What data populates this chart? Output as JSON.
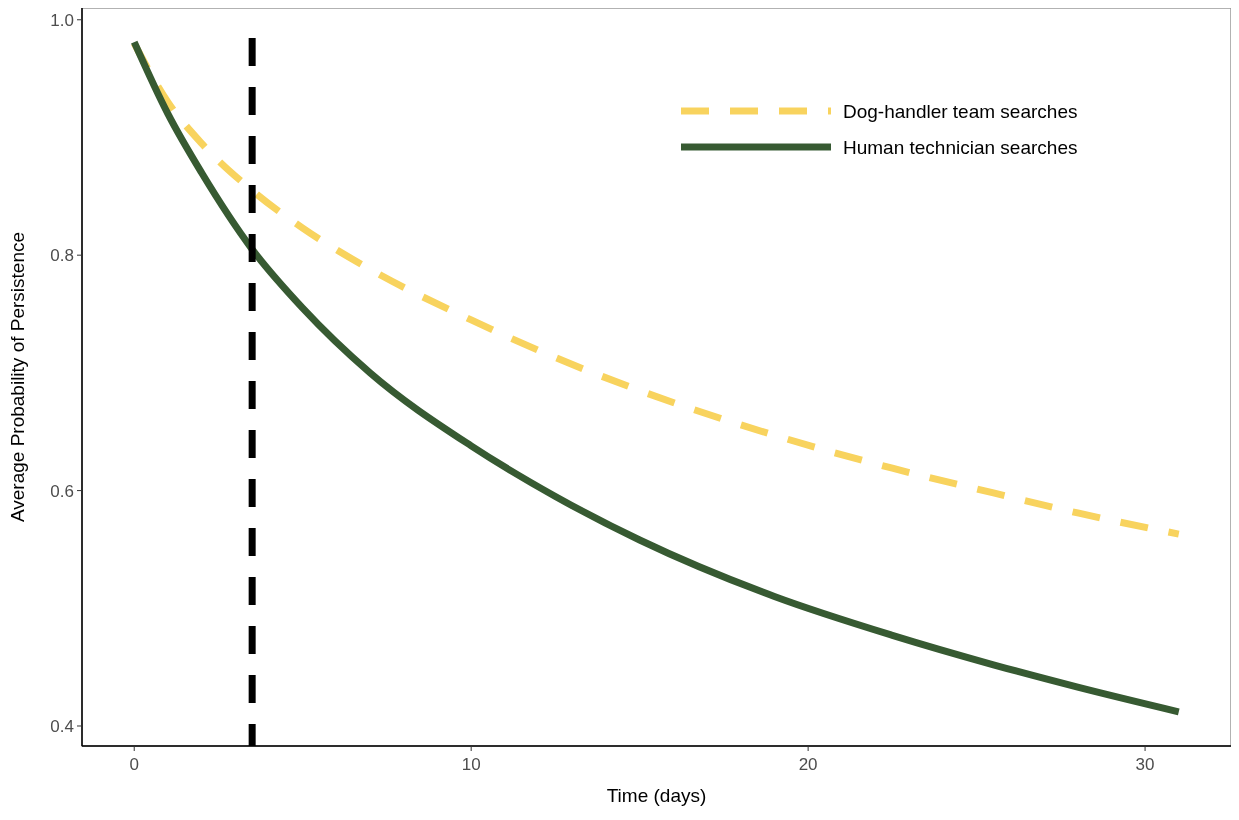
{
  "chart_data": {
    "type": "line",
    "xlabel": "Time (days)",
    "ylabel": "Average Probability of Persistence",
    "x": [
      0,
      1,
      2,
      3.5,
      5,
      7,
      10,
      12.5,
      15,
      19,
      22.5,
      25.5,
      28,
      31
    ],
    "series": [
      {
        "name": "Dog-handler team searches",
        "color": "#f8d35e",
        "line_style": "dashed",
        "values": [
          0.98,
          0.93,
          0.895,
          0.855,
          0.823,
          0.788,
          0.745,
          0.713,
          0.685,
          0.647,
          0.619,
          0.598,
          0.581,
          0.563
        ]
      },
      {
        "name": "Human technician searches",
        "color": "#375a32",
        "line_style": "solid",
        "values": [
          0.981,
          0.92,
          0.87,
          0.805,
          0.755,
          0.7,
          0.638,
          0.595,
          0.558,
          0.51,
          0.477,
          0.452,
          0.433,
          0.412
        ]
      }
    ],
    "xlim": [
      -1.55,
      32.55
    ],
    "ylim": [
      0.383,
      1.01
    ],
    "xticks": [
      0,
      10,
      20,
      30
    ],
    "yticks": [
      0.4,
      0.6,
      0.8,
      {
        "value": 1,
        "label": "1.0"
      }
    ],
    "ref_lines": [
      {
        "axis": "x",
        "value": 3.5,
        "color": "#000000",
        "line_style": "dashed"
      }
    ],
    "grid": false,
    "legend": "top right"
  }
}
